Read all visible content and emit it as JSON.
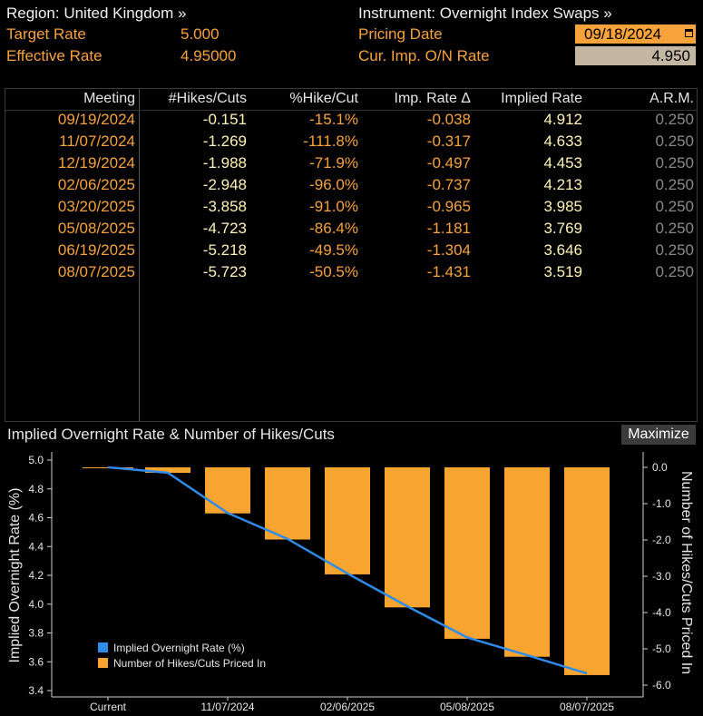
{
  "header": {
    "region_label": "Region: United Kingdom »",
    "instrument_label": "Instrument: Overnight Index Swaps »",
    "target_rate_label": "Target Rate",
    "target_rate_value": "5.000",
    "effective_rate_label": "Effective Rate",
    "effective_rate_value": "4.95000",
    "pricing_date_label": "Pricing Date",
    "pricing_date_value": "09/18/2024",
    "cur_imp_label": "Cur. Imp. O/N Rate",
    "cur_imp_value": "4.950"
  },
  "table": {
    "columns": [
      "Meeting",
      "#Hikes/Cuts",
      "%Hike/Cut",
      "Imp. Rate Δ",
      "Implied Rate",
      "A.R.M."
    ],
    "rows": [
      [
        "09/19/2024",
        "-0.151",
        "-15.1%",
        "-0.038",
        "4.912",
        "0.250"
      ],
      [
        "11/07/2024",
        "-1.269",
        "-111.8%",
        "-0.317",
        "4.633",
        "0.250"
      ],
      [
        "12/19/2024",
        "-1.988",
        "-71.9%",
        "-0.497",
        "4.453",
        "0.250"
      ],
      [
        "02/06/2025",
        "-2.948",
        "-96.0%",
        "-0.737",
        "4.213",
        "0.250"
      ],
      [
        "03/20/2025",
        "-3.858",
        "-91.0%",
        "-0.965",
        "3.985",
        "0.250"
      ],
      [
        "05/08/2025",
        "-4.723",
        "-86.4%",
        "-1.181",
        "3.769",
        "0.250"
      ],
      [
        "06/19/2025",
        "-5.218",
        "-49.5%",
        "-1.304",
        "3.646",
        "0.250"
      ],
      [
        "08/07/2025",
        "-5.723",
        "-50.5%",
        "-1.431",
        "3.519",
        "0.250"
      ]
    ]
  },
  "chart_title": "Implied Overnight Rate & Number of Hikes/Cuts",
  "maximize_label": "Maximize",
  "colors": {
    "bar": "#f7a530",
    "line": "#2f8ae8",
    "accent": "#f7a23a"
  },
  "chart_data": {
    "type": "bar",
    "title": "Implied Overnight Rate & Number of Hikes/Cuts",
    "categories": [
      "Current",
      "09/19/2024",
      "11/07/2024",
      "12/19/2024",
      "02/06/2025",
      "03/20/2025",
      "05/08/2025",
      "06/19/2025",
      "08/07/2025"
    ],
    "x_tick_labels": [
      "Current",
      "11/07/2024",
      "02/06/2025",
      "05/08/2025",
      "08/07/2025"
    ],
    "series": [
      {
        "name": "Number of Hikes/Cuts Priced In",
        "type": "bar",
        "axis": "right",
        "values": [
          0,
          -0.151,
          -1.269,
          -1.988,
          -2.948,
          -3.858,
          -4.723,
          -5.218,
          -5.723
        ]
      },
      {
        "name": "Implied Overnight Rate (%)",
        "type": "line",
        "axis": "left",
        "values": [
          4.95,
          4.912,
          4.633,
          4.453,
          4.213,
          3.985,
          3.769,
          3.646,
          3.519
        ]
      }
    ],
    "ylabel_left": "Implied Overnight Rate (%)",
    "ylabel_right": "Number of Hikes/Cuts Priced In",
    "ylim_left": [
      3.4,
      5.0
    ],
    "yticks_left": [
      "5.0",
      "4.8",
      "4.6",
      "4.4",
      "4.2",
      "4.0",
      "3.8",
      "3.6",
      "3.4"
    ],
    "ylim_right": [
      -6.0,
      0.0
    ],
    "yticks_right": [
      "0.0",
      "-1.0",
      "-2.0",
      "-3.0",
      "-4.0",
      "-5.0",
      "-6.0"
    ],
    "legend_position": "bottom-left",
    "grid": false
  }
}
